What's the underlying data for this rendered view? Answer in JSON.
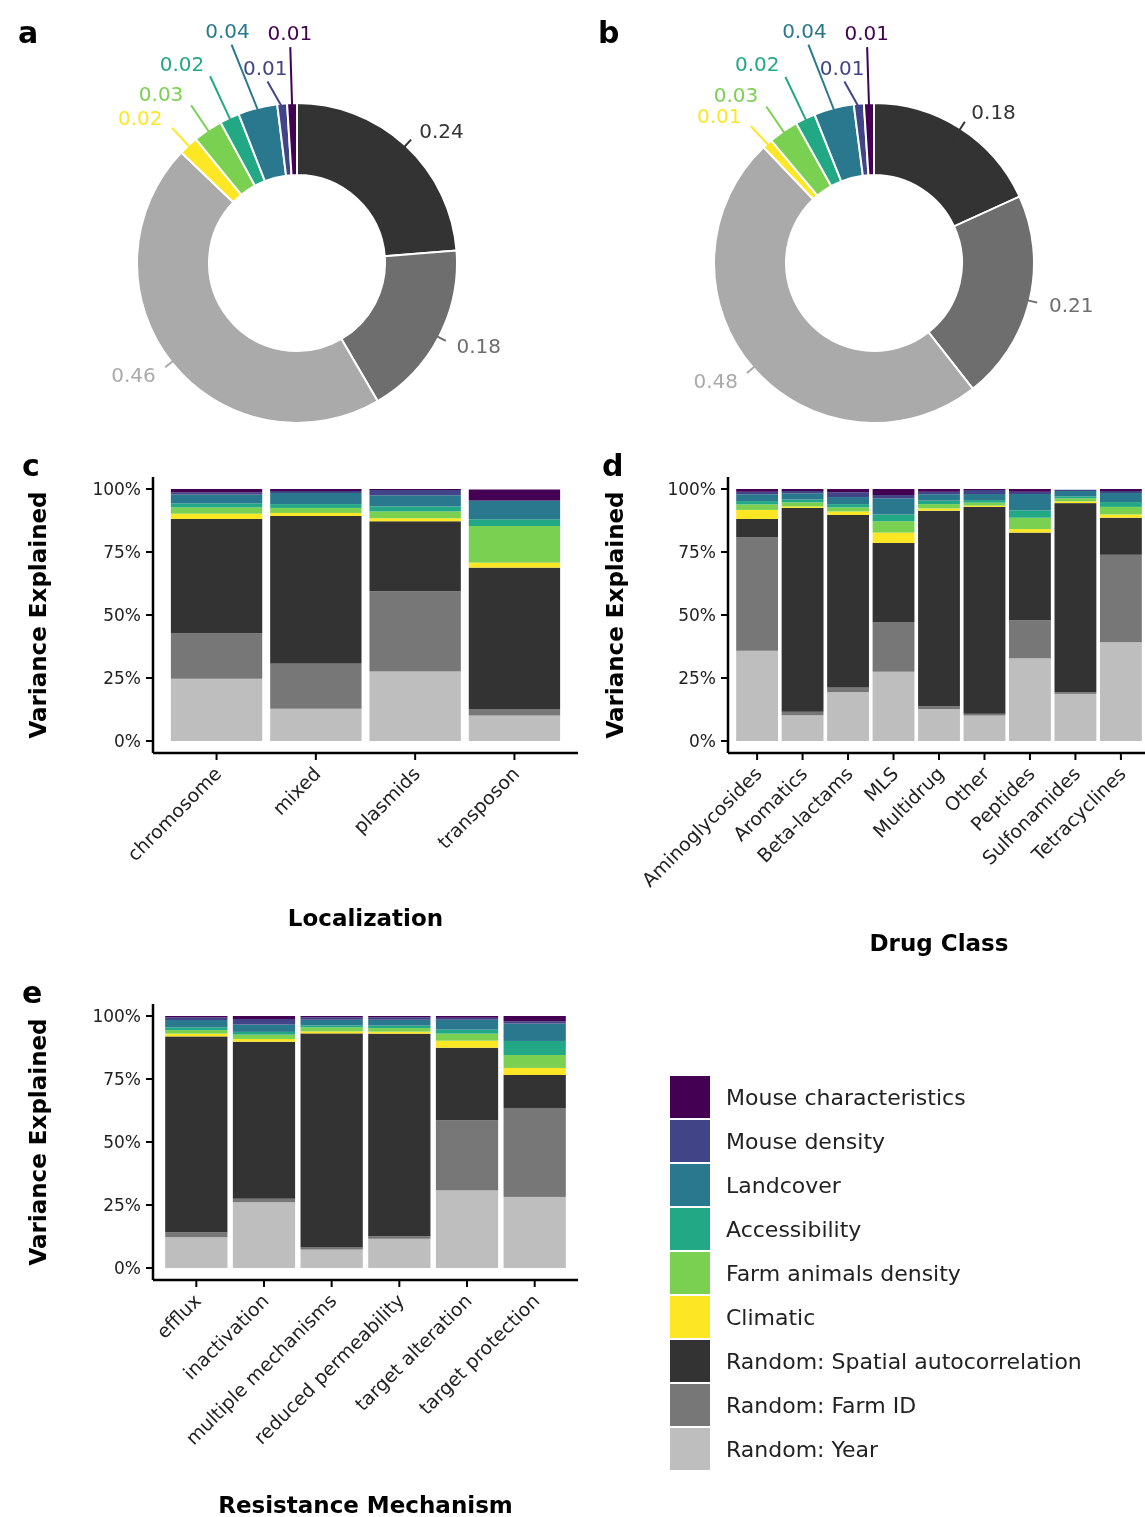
{
  "chart_data": [
    {
      "type": "donut",
      "title": "a",
      "categories": [
        null,
        null,
        null,
        null,
        null,
        null,
        null,
        null,
        null
      ],
      "values": [
        0.24,
        0.18,
        0.46,
        0.02,
        0.03,
        0.02,
        0.04,
        0.01,
        0.01
      ],
      "colors": [
        "#333333",
        "#6e6e6e",
        "#aaaaaa",
        "#fde725",
        "#7ad151",
        "#22a884",
        "#2a788e",
        "#414487",
        "#440154"
      ],
      "data_labels": true
    },
    {
      "type": "donut",
      "title": "b",
      "categories": [
        null,
        null,
        null,
        null,
        null,
        null,
        null,
        null,
        null
      ],
      "values": [
        0.18,
        0.21,
        0.48,
        0.01,
        0.03,
        0.02,
        0.04,
        0.01,
        0.01
      ],
      "colors": [
        "#333333",
        "#6e6e6e",
        "#aaaaaa",
        "#fde725",
        "#7ad151",
        "#22a884",
        "#2a788e",
        "#414487",
        "#440154"
      ],
      "data_labels": true
    },
    {
      "type": "bar",
      "title": "c",
      "stacked": true,
      "xlabel": "Localization",
      "ylabel": "Variance Explained",
      "categories": [
        "chromosome",
        "mixed",
        "plasmids",
        "transposon"
      ],
      "ylim": [
        0,
        100
      ],
      "yticks": [
        {
          "value": 0,
          "label": "0%"
        },
        {
          "value": 25,
          "label": "25%"
        },
        {
          "value": 50,
          "label": "50%"
        },
        {
          "value": 75,
          "label": "75%"
        },
        {
          "value": 100,
          "label": "100%"
        }
      ],
      "series": [
        {
          "color": "#bebebe",
          "values": [
            24.7,
            12.8,
            27.6,
            10.1
          ]
        },
        {
          "color": "#777777",
          "values": [
            18.0,
            17.9,
            31.8,
            2.6
          ]
        },
        {
          "color": "#333333",
          "values": [
            45.4,
            58.6,
            27.8,
            56.1
          ]
        },
        {
          "color": "#fde725",
          "values": [
            2.1,
            1.2,
            1.2,
            2.0
          ]
        },
        {
          "color": "#7ad151",
          "values": [
            2.5,
            2.0,
            2.7,
            14.5
          ]
        },
        {
          "color": "#22a884",
          "values": [
            1.6,
            1.5,
            2.0,
            2.7
          ]
        },
        {
          "color": "#2a788e",
          "values": [
            3.5,
            4.4,
            4.4,
            7.4
          ]
        },
        {
          "color": "#414487",
          "values": [
            0.9,
            0.8,
            2.1,
            null
          ]
        },
        {
          "color": "#440154",
          "values": [
            1.3,
            0.8,
            0.4,
            4.4
          ]
        }
      ]
    },
    {
      "type": "bar",
      "title": "d",
      "stacked": true,
      "xlabel": "Drug Class",
      "ylabel": "Variance Explained",
      "categories": [
        "Aminoglycosides",
        "Aromatics",
        "Beta-lactams",
        "MLS",
        "Multidrug",
        "Other",
        "Peptides",
        "Sulfonamides",
        "Tetracyclines"
      ],
      "ylim": [
        0,
        100
      ],
      "yticks": [
        {
          "value": 0,
          "label": "0%"
        },
        {
          "value": 25,
          "label": "25%"
        },
        {
          "value": 50,
          "label": "50%"
        },
        {
          "value": 75,
          "label": "75%"
        },
        {
          "value": 100,
          "label": "100%"
        }
      ],
      "series": [
        {
          "color": "#bebebe",
          "values": [
            35.8,
            10.2,
            19.4,
            27.5,
            12.7,
            10.1,
            32.8,
            18.7,
            39.2
          ]
        },
        {
          "color": "#777777",
          "values": [
            45.0,
            1.4,
            1.8,
            19.7,
            1.1,
            0.7,
            15.1,
            0.6,
            34.7
          ]
        },
        {
          "color": "#333333",
          "values": [
            7.3,
            80.9,
            68.5,
            31.4,
            77.6,
            82.1,
            34.8,
            75.1,
            14.7
          ]
        },
        {
          "color": "#fde725",
          "values": [
            3.6,
            0.6,
            1.4,
            4.1,
            0.9,
            0.5,
            1.4,
            0.7,
            1.3
          ]
        },
        {
          "color": "#7ad151",
          "values": [
            2.2,
            1.6,
            1.6,
            4.5,
            1.7,
            1.2,
            4.5,
            1.2,
            3.0
          ]
        },
        {
          "color": "#22a884",
          "values": [
            1.3,
            1.1,
            1.3,
            2.7,
            1.4,
            1.0,
            2.9,
            0.8,
            1.9
          ]
        },
        {
          "color": "#2a788e",
          "values": [
            2.7,
            2.5,
            2.8,
            6.4,
            2.5,
            2.4,
            6.5,
            2.1,
            3.6
          ]
        },
        {
          "color": "#414487",
          "values": [
            1.0,
            0.9,
            1.9,
            1.3,
            1.0,
            1.6,
            0.9,
            0.5,
            0.8
          ]
        },
        {
          "color": "#440154",
          "values": [
            1.1,
            0.8,
            1.3,
            2.4,
            1.1,
            0.4,
            1.1,
            null,
            0.8
          ]
        }
      ]
    },
    {
      "type": "bar",
      "title": "e",
      "stacked": true,
      "xlabel": "Resistance Mechanism",
      "ylabel": "Variance Explained",
      "categories": [
        "efflux",
        "inactivation",
        "multiple mechanisms",
        "reduced permeability",
        "target alteration",
        "target protection"
      ],
      "ylim": [
        0,
        100
      ],
      "yticks": [
        {
          "value": 0,
          "label": "0%"
        },
        {
          "value": 25,
          "label": "25%"
        },
        {
          "value": 50,
          "label": "50%"
        },
        {
          "value": 75,
          "label": "75%"
        },
        {
          "value": 100,
          "label": "100%"
        }
      ],
      "legend": "right",
      "series": [
        {
          "name": "Random: Year",
          "color": "#bebebe",
          "values": [
            12.2,
            26.1,
            7.3,
            11.6,
            30.8,
            28.2
          ]
        },
        {
          "name": "Random: Farm ID",
          "color": "#777777",
          "values": [
            2.0,
            1.4,
            1.0,
            1.0,
            27.8,
            35.3
          ]
        },
        {
          "name": "Random: Spatial autocorrelation",
          "color": "#333333",
          "values": [
            77.7,
            62.3,
            84.8,
            80.4,
            28.8,
            13.1
          ]
        },
        {
          "name": "Climatic",
          "color": "#fde725",
          "values": [
            1.1,
            1.1,
            0.8,
            0.8,
            2.8,
            2.8
          ]
        },
        {
          "name": "Farm animals density",
          "color": "#7ad151",
          "values": [
            1.4,
            1.7,
            1.6,
            1.4,
            2.8,
            5.1
          ]
        },
        {
          "name": "Accessibility",
          "color": "#22a884",
          "values": [
            1.1,
            1.1,
            0.8,
            1.0,
            1.6,
            5.6
          ]
        },
        {
          "name": "Landcover",
          "color": "#2a788e",
          "values": [
            2.9,
            2.9,
            2.2,
            2.3,
            3.9,
            6.9
          ]
        },
        {
          "name": "Mouse density",
          "color": "#414487",
          "values": [
            1.1,
            2.2,
            1.0,
            1.0,
            0.8,
            0.9
          ]
        },
        {
          "name": "Mouse characteristics",
          "color": "#440154",
          "values": [
            0.5,
            1.2,
            0.5,
            0.5,
            0.7,
            2.1
          ]
        }
      ]
    }
  ]
}
